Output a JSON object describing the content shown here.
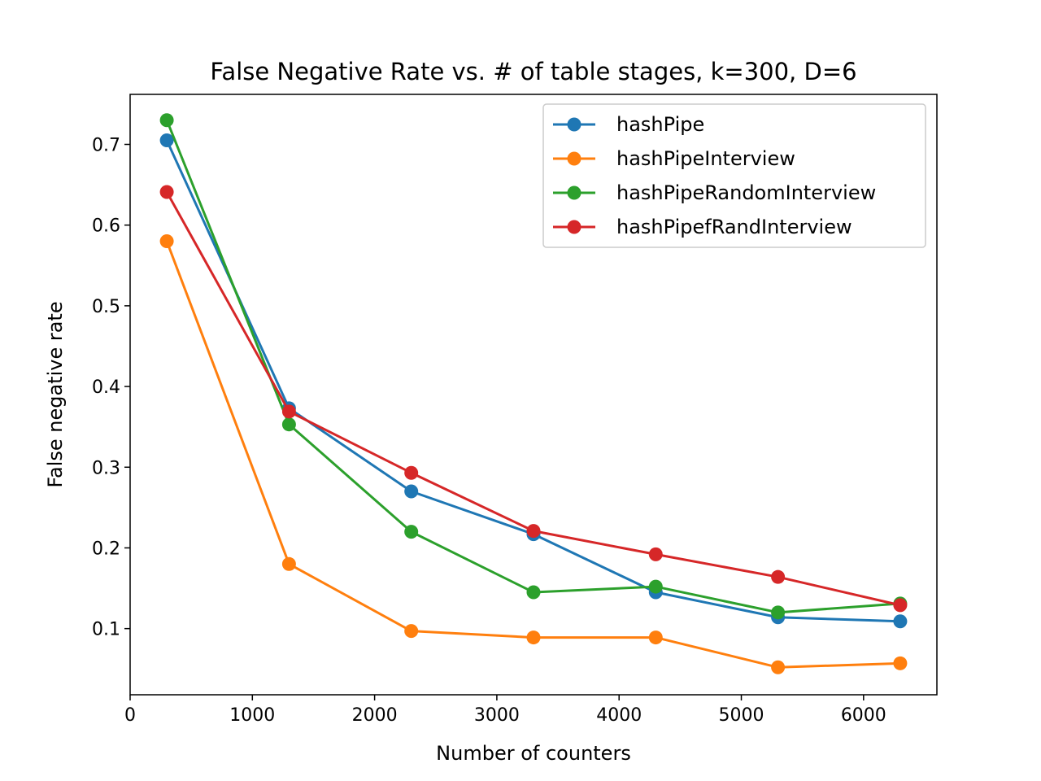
{
  "chart_data": {
    "type": "line",
    "title": "False Negative Rate vs. # of table stages, k=300, D=6",
    "xlabel": "Number of counters",
    "ylabel": "False negative rate",
    "xlim": [
      0,
      6600
    ],
    "ylim": [
      0.018,
      0.762
    ],
    "xticks": [
      0,
      1000,
      2000,
      3000,
      4000,
      5000,
      6000
    ],
    "xtick_labels": [
      "0",
      "1000",
      "2000",
      "3000",
      "4000",
      "5000",
      "6000"
    ],
    "yticks": [
      0.1,
      0.2,
      0.3,
      0.4,
      0.5,
      0.6,
      0.7
    ],
    "ytick_labels": [
      "0.1",
      "0.2",
      "0.3",
      "0.4",
      "0.5",
      "0.6",
      "0.7"
    ],
    "grid": false,
    "legend_position": "top-right",
    "x": [
      300,
      1300,
      2300,
      3300,
      4300,
      5300,
      6300
    ],
    "series": [
      {
        "name": "hashPipe",
        "color": "#1f77b4",
        "values": [
          0.705,
          0.373,
          0.27,
          0.217,
          0.145,
          0.114,
          0.109
        ]
      },
      {
        "name": "hashPipeInterview",
        "color": "#ff7f0e",
        "values": [
          0.58,
          0.18,
          0.097,
          0.089,
          0.089,
          0.052,
          0.057
        ]
      },
      {
        "name": "hashPipeRandomInterview",
        "color": "#2ca02c",
        "values": [
          0.73,
          0.353,
          0.22,
          0.145,
          0.152,
          0.12,
          0.131
        ]
      },
      {
        "name": "hashPipefRandInterview",
        "color": "#d62728",
        "values": [
          0.641,
          0.369,
          0.293,
          0.221,
          0.192,
          0.164,
          0.129
        ]
      }
    ]
  }
}
